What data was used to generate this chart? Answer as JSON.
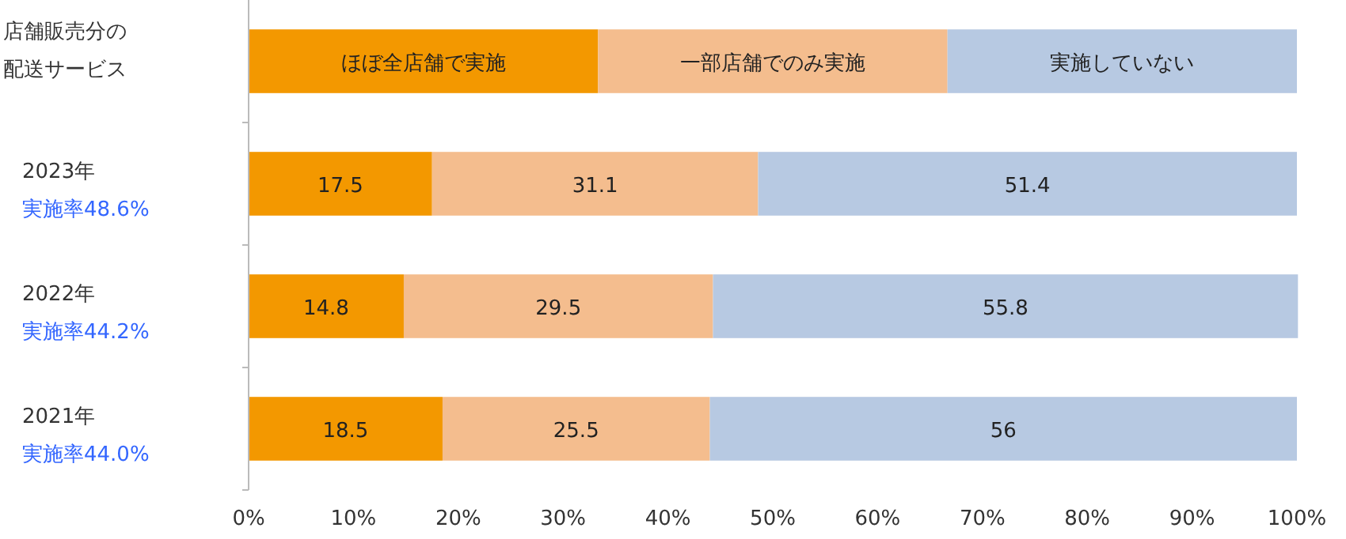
{
  "chart_data": {
    "type": "bar",
    "orientation": "horizontal",
    "stacked": true,
    "title": "店舗販売分の配送サービス",
    "categories": [
      "2023年",
      "2022年",
      "2021年"
    ],
    "series": [
      {
        "name": "ほぼ全店舗で実施",
        "color": "#f39800",
        "values": [
          17.5,
          14.8,
          18.5
        ]
      },
      {
        "name": "一部店舗でのみ実施",
        "color": "#f4bd8e",
        "values": [
          31.1,
          29.5,
          25.5
        ]
      },
      {
        "name": "実施していない",
        "color": "#b7c9e2",
        "values": [
          51.4,
          55.8,
          56
        ]
      }
    ],
    "annotations": [
      "実施率48.6%",
      "実施率44.2%",
      "実施率44.0%"
    ],
    "xlim": [
      0,
      100
    ],
    "xticks": [
      {
        "value": 0,
        "label": "0%"
      },
      {
        "value": 10,
        "label": "10%"
      },
      {
        "value": 20,
        "label": "20%"
      },
      {
        "value": 30,
        "label": "30%"
      },
      {
        "value": 40,
        "label": "40%"
      },
      {
        "value": 50,
        "label": "50%"
      },
      {
        "value": 60,
        "label": "60%"
      },
      {
        "value": 70,
        "label": "70%"
      },
      {
        "value": 80,
        "label": "80%"
      },
      {
        "value": 90,
        "label": "90%"
      },
      {
        "value": 100,
        "label": "100%"
      }
    ],
    "data_labels": true,
    "legend": "top",
    "grid": false
  }
}
